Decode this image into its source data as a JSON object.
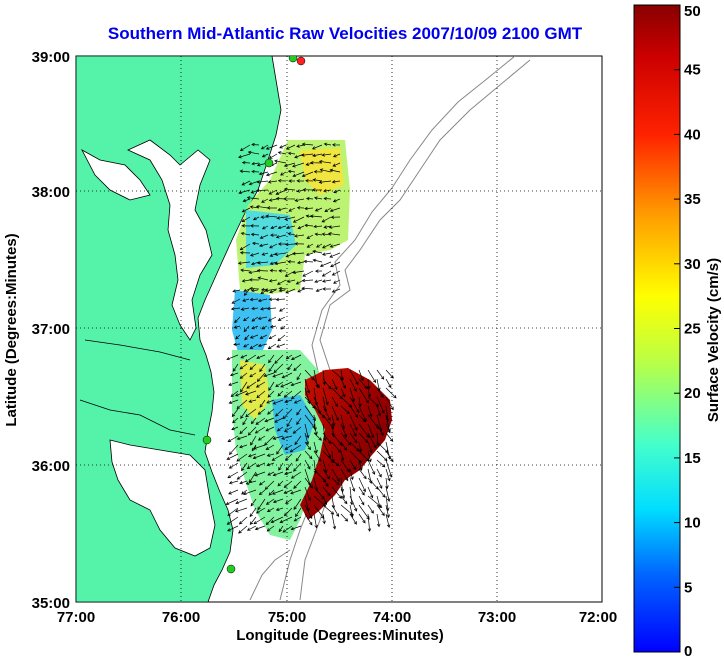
{
  "chart_data": {
    "type": "map",
    "title": "Southern Mid-Atlantic Raw Velocities 2007/10/09 2100 GMT",
    "xlabel": "Longitude (Degrees:Minutes)",
    "ylabel": "Latitude (Degrees:Minutes)",
    "x_ticks": [
      "77:00",
      "76:00",
      "75:00",
      "74:00",
      "73:00",
      "72:00"
    ],
    "y_ticks": [
      "39:00",
      "38:00",
      "37:00",
      "36:00",
      "35:00"
    ],
    "xlim": [
      -77,
      -72
    ],
    "ylim": [
      35,
      39
    ],
    "grid": true,
    "colorbar": {
      "label": "Surface Velocity (cm/s)",
      "range": [
        0,
        50
      ],
      "ticks": [
        "50",
        "45",
        "40",
        "35",
        "30",
        "25",
        "20",
        "15",
        "10",
        "5",
        "0"
      ]
    },
    "colors": {
      "land": "#55f2a9",
      "coast": "#000000",
      "bathymetry": "#888888",
      "title": "#0000ee",
      "station": "#22cc22",
      "station_alt": "#ff2222"
    }
  }
}
